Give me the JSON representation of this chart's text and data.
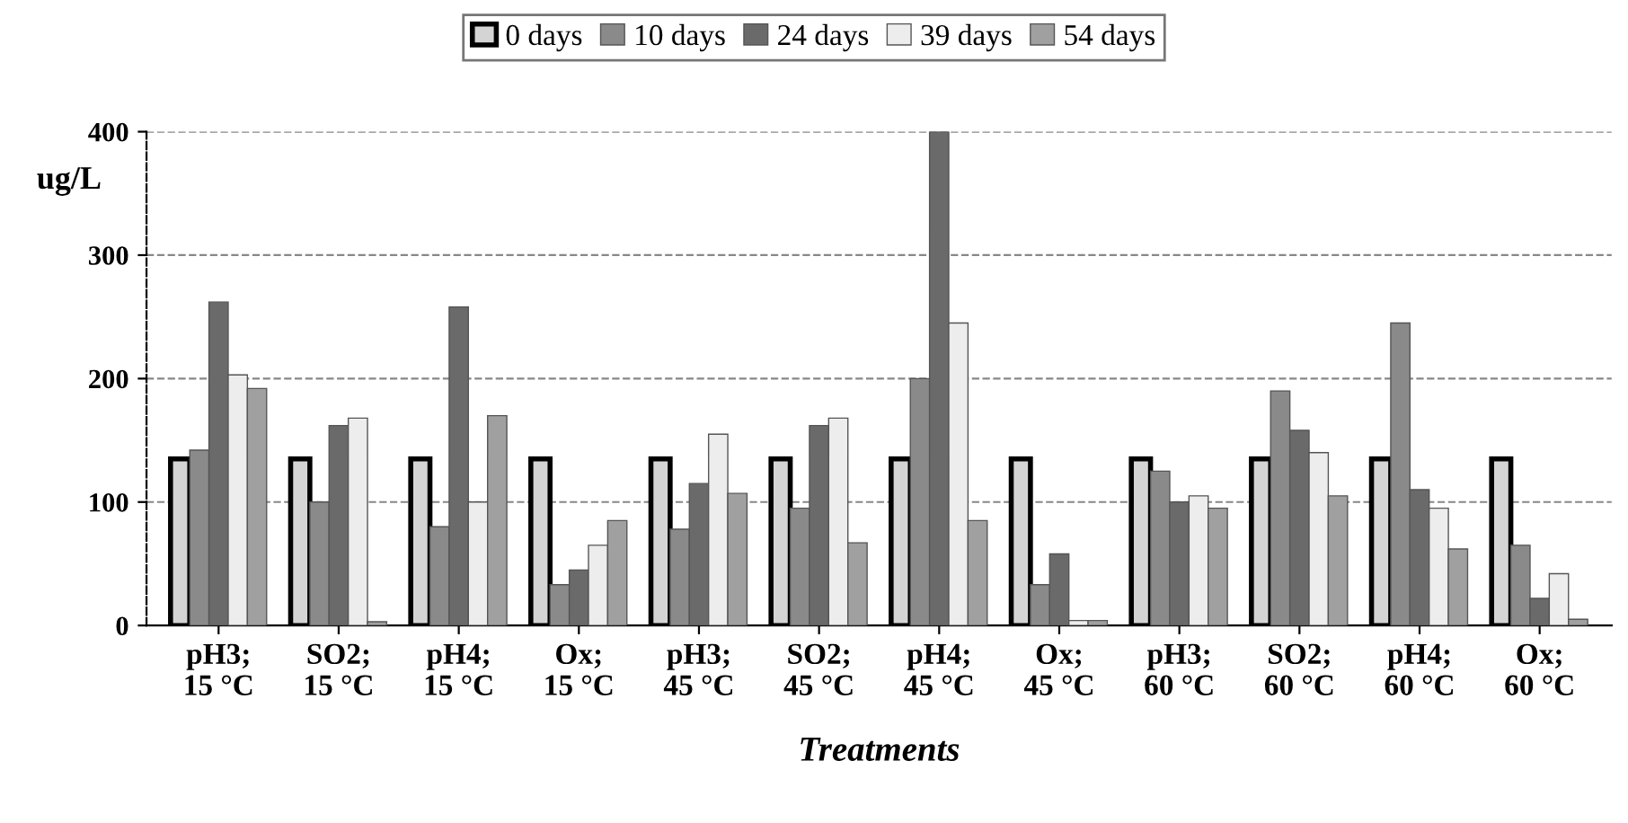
{
  "chart_data": {
    "type": "bar",
    "xlabel": "Treatments",
    "ylabel": "ug/L",
    "categories": [
      "pH3;\n15 °C",
      "SO2;\n15 °C",
      "pH4;\n15 °C",
      "Ox;\n15 °C",
      "pH3;\n45 °C",
      "SO2;\n45 °C",
      "pH4;\n45 °C",
      "Ox;\n45 °C",
      "pH3;\n60 °C",
      "SO2;\n60 °C",
      "pH4;\n60 °C",
      "Ox;\n60 °C"
    ],
    "series": [
      {
        "name": "0 days",
        "color": "#d4d4d4",
        "values": [
          135,
          135,
          135,
          135,
          135,
          135,
          135,
          135,
          135,
          135,
          135,
          135
        ]
      },
      {
        "name": "10 days",
        "color": "#8a8a8a",
        "values": [
          142,
          100,
          80,
          33,
          78,
          95,
          200,
          33,
          125,
          190,
          245,
          65
        ]
      },
      {
        "name": "24 days",
        "color": "#6a6a6a",
        "values": [
          262,
          162,
          258,
          45,
          115,
          162,
          400,
          58,
          100,
          158,
          110,
          22
        ]
      },
      {
        "name": "39 days",
        "color": "#ededed",
        "values": [
          203,
          168,
          100,
          65,
          155,
          168,
          245,
          4,
          105,
          140,
          95,
          42
        ]
      },
      {
        "name": "54 days",
        "color": "#a0a0a0",
        "values": [
          192,
          3,
          170,
          85,
          107,
          67,
          85,
          4,
          95,
          105,
          62,
          5
        ]
      }
    ],
    "ylim": [
      0,
      400
    ],
    "yticks": [
      0,
      100,
      200,
      300,
      400
    ],
    "grid": "y",
    "legend": "top"
  }
}
